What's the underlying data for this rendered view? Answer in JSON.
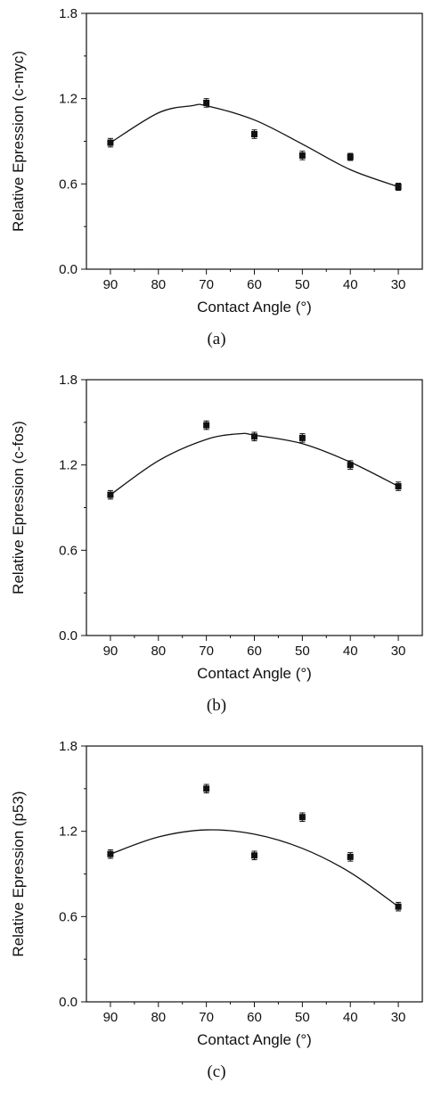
{
  "chart_data": [
    {
      "type": "scatter",
      "panel_label": "(a)",
      "xlabel": "Contact Angle (°)",
      "ylabel": "Relative Epression (c-myc)",
      "xlim": [
        95,
        25
      ],
      "ylim": [
        0,
        1.8
      ],
      "xticks": [
        90,
        80,
        70,
        60,
        50,
        40,
        30
      ],
      "yticks": [
        0.0,
        0.6,
        1.2,
        1.8
      ],
      "ytick_labels": [
        "0.0",
        "0.6",
        "1.2",
        "1.8"
      ],
      "series": [
        {
          "x": [
            90,
            70,
            60,
            50,
            40,
            30
          ],
          "y": [
            0.89,
            1.17,
            0.95,
            0.8,
            0.79,
            0.58
          ],
          "err": [
            0.03,
            0.03,
            0.03,
            0.03,
            0.025,
            0.025
          ]
        }
      ],
      "fit": {
        "x": [
          90,
          80,
          73,
          70,
          60,
          50,
          40,
          30
        ],
        "y": [
          0.89,
          1.1,
          1.15,
          1.15,
          1.05,
          0.88,
          0.7,
          0.58
        ]
      }
    },
    {
      "type": "scatter",
      "panel_label": "(b)",
      "xlabel": "Contact Angle (°)",
      "ylabel": "Relative Epression (c-fos)",
      "xlim": [
        95,
        25
      ],
      "ylim": [
        0,
        1.8
      ],
      "xticks": [
        90,
        80,
        70,
        60,
        50,
        40,
        30
      ],
      "yticks": [
        0.0,
        0.6,
        1.2,
        1.8
      ],
      "ytick_labels": [
        "0.0",
        "0.6",
        "1.2",
        "1.8"
      ],
      "series": [
        {
          "x": [
            90,
            70,
            60,
            50,
            40,
            30
          ],
          "y": [
            0.99,
            1.48,
            1.4,
            1.39,
            1.2,
            1.05
          ],
          "err": [
            0.03,
            0.03,
            0.03,
            0.03,
            0.03,
            0.03
          ]
        }
      ],
      "fit": {
        "x": [
          90,
          80,
          70,
          63,
          60,
          50,
          40,
          30
        ],
        "y": [
          0.99,
          1.23,
          1.38,
          1.42,
          1.41,
          1.35,
          1.22,
          1.05
        ]
      }
    },
    {
      "type": "scatter",
      "panel_label": "(c)",
      "xlabel": "Contact Angle (°)",
      "ylabel": "Relative Epression (p53)",
      "xlim": [
        95,
        25
      ],
      "ylim": [
        0,
        1.8
      ],
      "xticks": [
        90,
        80,
        70,
        60,
        50,
        40,
        30
      ],
      "yticks": [
        0.0,
        0.6,
        1.2,
        1.8
      ],
      "ytick_labels": [
        "0.0",
        "0.6",
        "1.2",
        "1.8"
      ],
      "series": [
        {
          "x": [
            90,
            70,
            60,
            50,
            40,
            30
          ],
          "y": [
            1.04,
            1.5,
            1.03,
            1.3,
            1.02,
            0.67
          ],
          "err": [
            0.03,
            0.03,
            0.03,
            0.03,
            0.03,
            0.03
          ]
        }
      ],
      "fit": {
        "x": [
          90,
          80,
          70,
          60,
          50,
          40,
          30
        ],
        "y": [
          1.04,
          1.16,
          1.21,
          1.18,
          1.08,
          0.91,
          0.67
        ]
      }
    }
  ]
}
